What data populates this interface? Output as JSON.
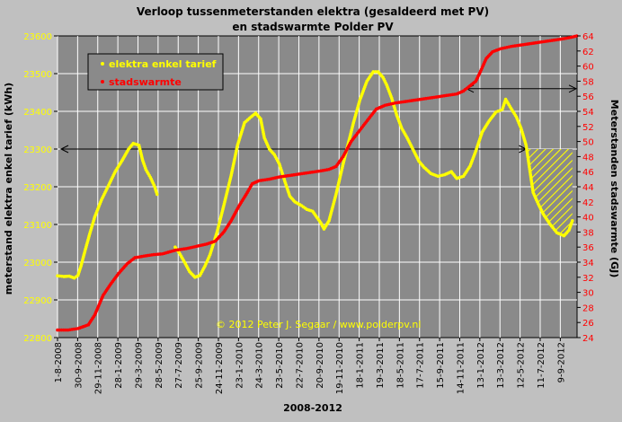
{
  "chart_data": {
    "type": "scatter",
    "title": "Verloop tussenmeterstanden elektra (gesaldeerd met PV)",
    "subtitle": "en stadswarmte Polder PV",
    "xlabel": "2008-2012",
    "ylabel_left": "meterstand elektra enkel tarief (kWh)",
    "ylabel_right": "Meterstanden stadswarmte (GJ)",
    "copyright": "© 2012 Peter J. Segaar / www.polderpv.nl",
    "x_tick_labels": [
      "1-8-2008",
      "30-9-2008",
      "29-11-2008",
      "28-1-2009",
      "29-3-2009",
      "28-5-2009",
      "27-7-2009",
      "25-9-2009",
      "24-11-2009",
      "23-1-2010",
      "24-3-2010",
      "23-5-2010",
      "22-7-2010",
      "20-9-2010",
      "19-11-2010",
      "18-1-2011",
      "19-3-2011",
      "18-5-2011",
      "17-7-2011",
      "15-9-2011",
      "14-11-2011",
      "13-1-2012",
      "13-3-2012",
      "12-5-2012",
      "11-7-2012",
      "9-9-2012"
    ],
    "xlim": [
      "2008-08-01",
      "2012-10-29"
    ],
    "y_left": {
      "min": 22800,
      "max": 23600,
      "step": 100
    },
    "y_right": {
      "min": 24,
      "max": 64,
      "step": 2
    },
    "grid": true,
    "legend_position": "top-left",
    "series": [
      {
        "name": "elektra enkel tarief",
        "axis": "left",
        "color": "#ffff00",
        "points": [
          [
            "2008-08-01",
            22964
          ],
          [
            "2008-08-20",
            22962
          ],
          [
            "2008-09-05",
            22963
          ],
          [
            "2008-09-20",
            22958
          ],
          [
            "2008-10-01",
            22965
          ],
          [
            "2008-10-10",
            22990
          ],
          [
            "2008-10-22",
            23030
          ],
          [
            "2008-11-05",
            23075
          ],
          [
            "2008-11-20",
            23120
          ],
          [
            "2008-12-10",
            23165
          ],
          [
            "2009-01-01",
            23205
          ],
          [
            "2009-01-20",
            23240
          ],
          [
            "2009-02-10",
            23270
          ],
          [
            "2009-03-01",
            23300
          ],
          [
            "2009-03-15",
            23315
          ],
          [
            "2009-04-01",
            23310
          ],
          [
            "2009-04-12",
            23270
          ],
          [
            "2009-04-22",
            23245
          ],
          [
            "2009-05-05",
            23225
          ],
          [
            "2009-05-18",
            23200
          ],
          [
            "2009-05-25",
            23180
          ],
          [
            "2009-07-18",
            23040
          ],
          [
            "2009-07-30",
            23025
          ],
          [
            "2009-08-15",
            23000
          ],
          [
            "2009-08-30",
            22975
          ],
          [
            "2009-09-15",
            22960
          ],
          [
            "2009-09-30",
            22965
          ],
          [
            "2009-10-15",
            22990
          ],
          [
            "2009-10-30",
            23020
          ],
          [
            "2009-11-20",
            23080
          ],
          [
            "2009-12-10",
            23150
          ],
          [
            "2010-01-01",
            23230
          ],
          [
            "2010-01-20",
            23310
          ],
          [
            "2010-02-10",
            23370
          ],
          [
            "2010-03-01",
            23385
          ],
          [
            "2010-03-15",
            23395
          ],
          [
            "2010-03-30",
            23380
          ],
          [
            "2010-04-10",
            23330
          ],
          [
            "2010-04-25",
            23300
          ],
          [
            "2010-05-10",
            23285
          ],
          [
            "2010-05-25",
            23260
          ],
          [
            "2010-06-10",
            23215
          ],
          [
            "2010-06-25",
            23175
          ],
          [
            "2010-07-10",
            23160
          ],
          [
            "2010-07-30",
            23150
          ],
          [
            "2010-08-15",
            23140
          ],
          [
            "2010-09-01",
            23135
          ],
          [
            "2010-09-25",
            23105
          ],
          [
            "2010-10-05",
            23088
          ],
          [
            "2010-10-20",
            23110
          ],
          [
            "2010-11-10",
            23180
          ],
          [
            "2010-12-01",
            23260
          ],
          [
            "2011-01-01",
            23370
          ],
          [
            "2011-01-20",
            23430
          ],
          [
            "2011-02-10",
            23480
          ],
          [
            "2011-03-01",
            23505
          ],
          [
            "2011-03-15",
            23505
          ],
          [
            "2011-03-30",
            23490
          ],
          [
            "2011-04-10",
            23470
          ],
          [
            "2011-04-25",
            23435
          ],
          [
            "2011-05-10",
            23390
          ],
          [
            "2011-05-25",
            23355
          ],
          [
            "2011-06-10",
            23330
          ],
          [
            "2011-07-15",
            23268
          ],
          [
            "2011-07-30",
            23252
          ],
          [
            "2011-08-20",
            23235
          ],
          [
            "2011-09-10",
            23228
          ],
          [
            "2011-09-30",
            23232
          ],
          [
            "2011-10-20",
            23240
          ],
          [
            "2011-11-05",
            23222
          ],
          [
            "2011-11-25",
            23228
          ],
          [
            "2011-12-15",
            23255
          ],
          [
            "2012-01-01",
            23295
          ],
          [
            "2012-01-20",
            23345
          ],
          [
            "2012-02-10",
            23375
          ],
          [
            "2012-03-01",
            23398
          ],
          [
            "2012-03-20",
            23405
          ],
          [
            "2012-03-30",
            23432
          ],
          [
            "2012-04-15",
            23408
          ],
          [
            "2012-05-01",
            23385
          ],
          [
            "2012-05-15",
            23355
          ],
          [
            "2012-05-30",
            23310
          ],
          [
            "2012-06-20",
            23185
          ],
          [
            "2012-07-05",
            23155
          ],
          [
            "2012-07-20",
            23128
          ],
          [
            "2012-08-10",
            23100
          ],
          [
            "2012-08-30",
            23078
          ],
          [
            "2012-09-20",
            23070
          ],
          [
            "2012-10-05",
            23085
          ],
          [
            "2012-10-15",
            23110
          ]
        ]
      },
      {
        "name": "stadswarmte",
        "axis": "right",
        "color": "#ff0000",
        "points": [
          [
            "2008-08-01",
            25.0
          ],
          [
            "2008-09-01",
            25.0
          ],
          [
            "2008-10-01",
            25.2
          ],
          [
            "2008-11-01",
            25.7
          ],
          [
            "2008-11-20",
            27.0
          ],
          [
            "2008-12-15",
            29.6
          ],
          [
            "2009-01-05",
            31.0
          ],
          [
            "2009-01-30",
            32.5
          ],
          [
            "2009-02-25",
            33.8
          ],
          [
            "2009-03-20",
            34.6
          ],
          [
            "2009-04-15",
            34.8
          ],
          [
            "2009-05-15",
            35.0
          ],
          [
            "2009-06-10",
            35.1
          ],
          [
            "2009-07-20",
            35.6
          ],
          [
            "2009-08-20",
            35.8
          ],
          [
            "2009-09-20",
            36.1
          ],
          [
            "2009-10-20",
            36.4
          ],
          [
            "2009-11-15",
            36.8
          ],
          [
            "2009-12-10",
            38.0
          ],
          [
            "2010-01-01",
            39.5
          ],
          [
            "2010-01-25",
            41.5
          ],
          [
            "2010-02-15",
            43.0
          ],
          [
            "2010-03-05",
            44.4
          ],
          [
            "2010-03-25",
            44.8
          ],
          [
            "2010-04-25",
            45.0
          ],
          [
            "2010-05-25",
            45.3
          ],
          [
            "2010-06-25",
            45.5
          ],
          [
            "2010-07-25",
            45.7
          ],
          [
            "2010-08-25",
            45.9
          ],
          [
            "2010-09-25",
            46.1
          ],
          [
            "2010-10-20",
            46.3
          ],
          [
            "2010-11-10",
            46.7
          ],
          [
            "2010-12-01",
            48.0
          ],
          [
            "2010-12-25",
            50.0
          ],
          [
            "2011-01-20",
            51.5
          ],
          [
            "2011-02-15",
            53.0
          ],
          [
            "2011-03-10",
            54.3
          ],
          [
            "2011-04-05",
            54.8
          ],
          [
            "2011-05-05",
            55.1
          ],
          [
            "2011-06-05",
            55.3
          ],
          [
            "2011-07-05",
            55.5
          ],
          [
            "2011-08-05",
            55.7
          ],
          [
            "2011-09-05",
            55.9
          ],
          [
            "2011-10-05",
            56.1
          ],
          [
            "2011-11-05",
            56.3
          ],
          [
            "2011-11-25",
            56.7
          ],
          [
            "2011-12-15",
            57.4
          ],
          [
            "2012-01-01",
            58.0
          ],
          [
            "2012-01-15",
            59.3
          ],
          [
            "2012-02-01",
            61.0
          ],
          [
            "2012-02-20",
            61.9
          ],
          [
            "2012-03-15",
            62.3
          ],
          [
            "2012-04-15",
            62.6
          ],
          [
            "2012-05-15",
            62.8
          ],
          [
            "2012-06-15",
            63.0
          ],
          [
            "2012-07-15",
            63.2
          ],
          [
            "2012-08-15",
            63.4
          ],
          [
            "2012-09-15",
            63.6
          ],
          [
            "2012-10-10",
            63.8
          ],
          [
            "2012-10-28",
            64.0
          ]
        ]
      }
    ],
    "annotations": {
      "left_arrow": {
        "from": "2008-08-01",
        "to": "2012-05-30",
        "value_left": 23300
      },
      "right_arrow": {
        "from": "2011-12-15",
        "to": "2012-10-29",
        "value_right": 57
      },
      "hatch": {
        "from": "2012-05-30",
        "to": "2012-10-15",
        "top_left": 23300,
        "color": "#ffff00"
      }
    }
  }
}
